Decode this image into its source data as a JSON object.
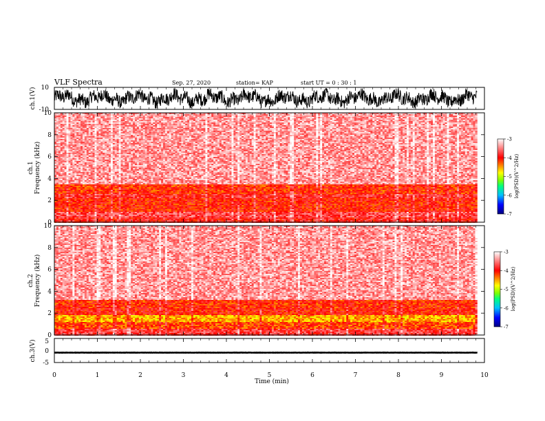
{
  "header": {
    "title": "VLF Spectra",
    "date": "Sep. 27, 2020",
    "station": "station= KAP",
    "start_time": "start  UT =  0 : 30 : 1"
  },
  "colorbar": {
    "label": "log(PSD)(V^2/Hz)",
    "ticks": [
      "-3",
      "-4",
      "-5",
      "-6",
      "-7"
    ],
    "range": [
      -7,
      -3
    ],
    "colors": [
      "#000080",
      "#0000ff",
      "#00bfff",
      "#00ff7f",
      "#7fff00",
      "#ffff00",
      "#ff8000",
      "#ff0000",
      "#ffffff"
    ]
  },
  "chart_data": [
    {
      "type": "line",
      "name": "ch1-waveform",
      "ylabel": "ch.1(V)",
      "ylim": [
        -10,
        10
      ],
      "yticks": [
        "10",
        "-10"
      ],
      "xlim": [
        0,
        10
      ],
      "data_end_min": 9.83,
      "amplitude_range": [
        -9,
        9
      ],
      "color": "#000000"
    },
    {
      "type": "heatmap",
      "name": "ch1-spectrogram",
      "ylabel": "ch.1\nFrequency  (kHz)",
      "ylim": [
        0,
        10
      ],
      "yticks": [
        "0",
        "2",
        "4",
        "6",
        "8",
        "10"
      ],
      "xlim": [
        0,
        10
      ],
      "data_end_min": 9.83,
      "bands": [
        {
          "from_khz": 0.0,
          "to_khz": 0.5,
          "log_psd": -3.9
        },
        {
          "from_khz": 0.5,
          "to_khz": 1.0,
          "log_psd": -3.7
        },
        {
          "from_khz": 1.0,
          "to_khz": 2.2,
          "log_psd": -4.05
        },
        {
          "from_khz": 2.2,
          "to_khz": 2.6,
          "log_psd": -3.85
        },
        {
          "from_khz": 2.6,
          "to_khz": 3.4,
          "log_psd": -4.1
        },
        {
          "from_khz": 3.4,
          "to_khz": 10.0,
          "log_psd": -3.4
        }
      ]
    },
    {
      "type": "heatmap",
      "name": "ch2-spectrogram",
      "ylabel": "ch.2\nFrequency  (kHz)",
      "ylim": [
        0,
        10
      ],
      "yticks": [
        "0",
        "2",
        "4",
        "6",
        "8",
        "10"
      ],
      "xlim": [
        0,
        10
      ],
      "data_end_min": 9.83,
      "bands": [
        {
          "from_khz": 0.0,
          "to_khz": 0.6,
          "log_psd": -3.8
        },
        {
          "from_khz": 0.6,
          "to_khz": 1.2,
          "log_psd": -4.2
        },
        {
          "from_khz": 1.2,
          "to_khz": 1.8,
          "log_psd": -4.55
        },
        {
          "from_khz": 1.8,
          "to_khz": 2.4,
          "log_psd": -4.0
        },
        {
          "from_khz": 2.4,
          "to_khz": 3.2,
          "log_psd": -4.1
        },
        {
          "from_khz": 3.2,
          "to_khz": 10.0,
          "log_psd": -3.4
        }
      ]
    },
    {
      "type": "line",
      "name": "ch3-waveform",
      "ylabel": "ch.3(V)",
      "ylim": [
        -5,
        5
      ],
      "yticks": [
        "5",
        "0",
        "-5"
      ],
      "xlim": [
        0,
        10
      ],
      "data_end_min": 9.83,
      "amplitude_range": [
        -1.3,
        -0.5
      ],
      "color": "#000000"
    }
  ],
  "xaxis": {
    "label": "Time  (min)",
    "ticks": [
      "0",
      "1",
      "2",
      "3",
      "4",
      "5",
      "6",
      "7",
      "8",
      "9",
      "10"
    ],
    "range": [
      0,
      10
    ]
  }
}
